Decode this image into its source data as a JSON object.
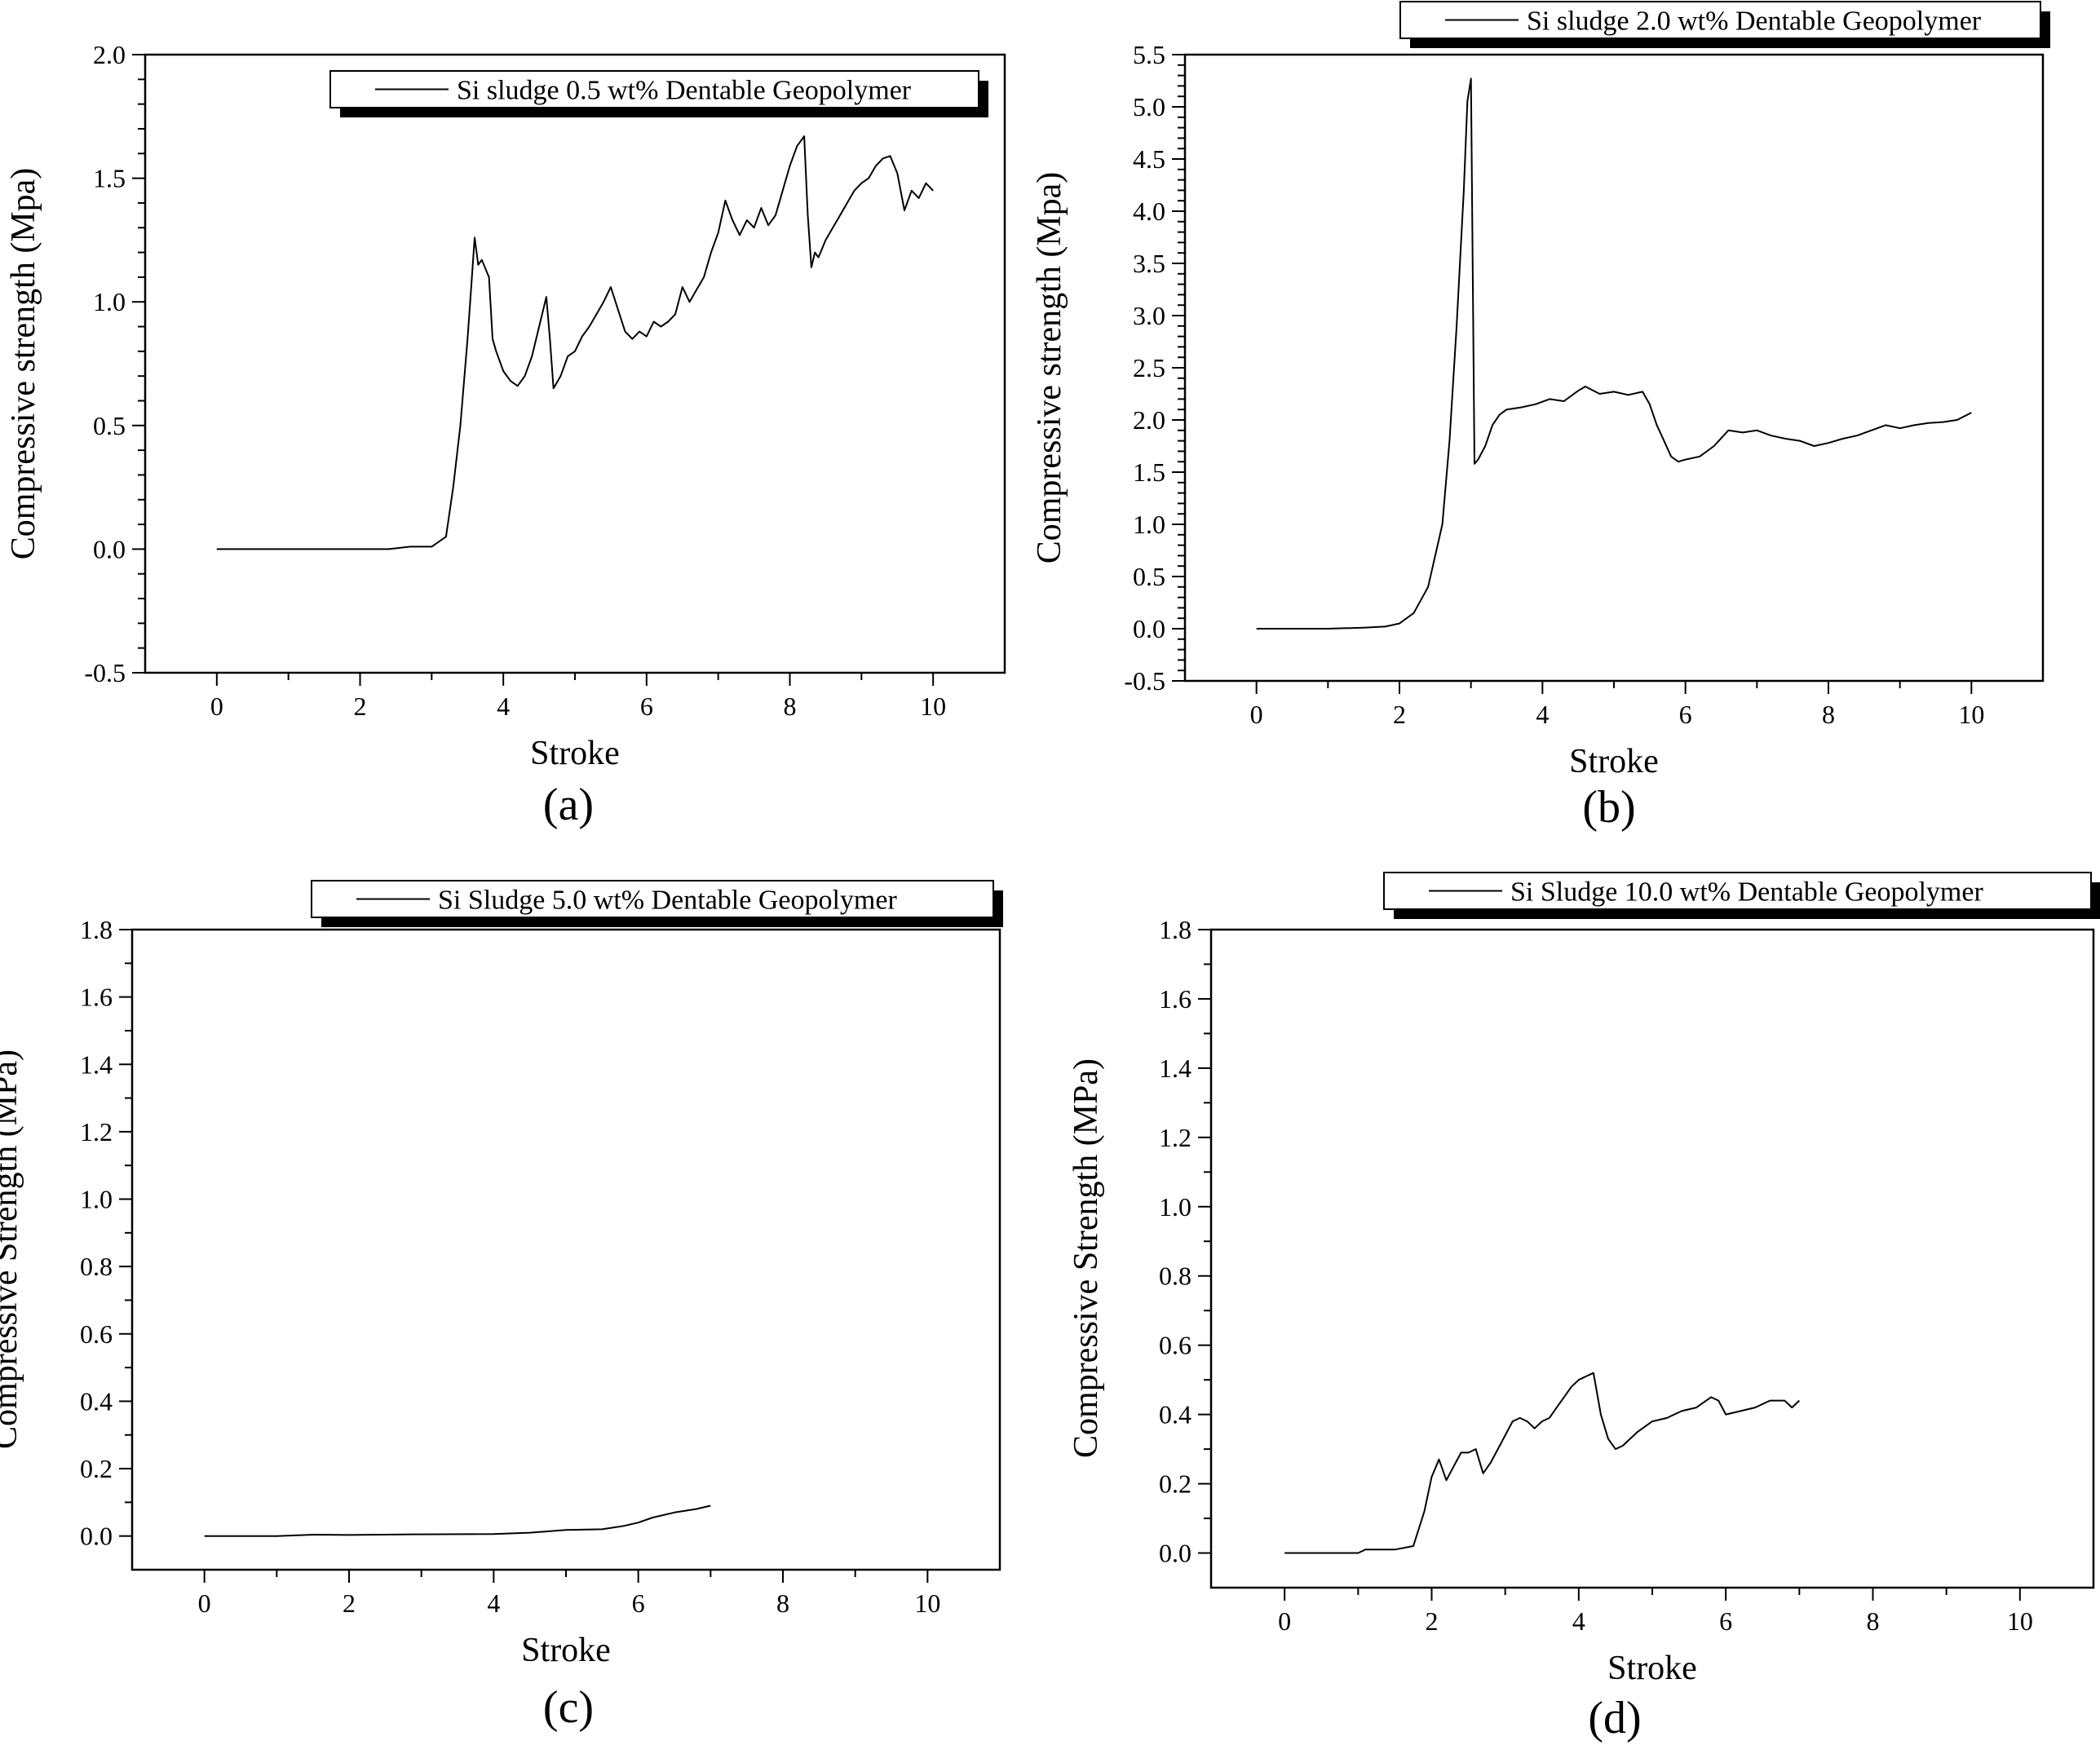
{
  "figure": {
    "panel_count": 4
  },
  "chart_data": [
    {
      "type": "line",
      "panel": "(a)",
      "xlabel": "Stroke",
      "ylabel": "Compressive strength (Mpa)",
      "xlim": [
        -1,
        11
      ],
      "ylim": [
        -0.5,
        2.0
      ],
      "xticks": [
        "0",
        "2",
        "4",
        "6",
        "8",
        "10"
      ],
      "yticks": [
        "-0.5",
        "0.0",
        "0.5",
        "1.0",
        "1.5",
        "2.0"
      ],
      "grid": false,
      "legend_position": "top-right",
      "series": [
        {
          "name": "Si sludge 0.5 wt% Dentable Geopolymer",
          "x": [
            0,
            0.5,
            1,
            1.5,
            2,
            2.4,
            2.7,
            3.0,
            3.2,
            3.3,
            3.4,
            3.5,
            3.55,
            3.6,
            3.65,
            3.7,
            3.8,
            3.85,
            3.9,
            4.0,
            4.1,
            4.2,
            4.3,
            4.4,
            4.5,
            4.6,
            4.65,
            4.7,
            4.8,
            4.9,
            5.0,
            5.1,
            5.2,
            5.3,
            5.4,
            5.5,
            5.6,
            5.7,
            5.8,
            5.9,
            6.0,
            6.1,
            6.2,
            6.3,
            6.4,
            6.5,
            6.6,
            6.7,
            6.8,
            6.9,
            7.0,
            7.1,
            7.2,
            7.3,
            7.4,
            7.5,
            7.6,
            7.7,
            7.8,
            7.9,
            8.0,
            8.1,
            8.2,
            8.25,
            8.3,
            8.35,
            8.4,
            8.5,
            8.6,
            8.7,
            8.8,
            8.9,
            9.0,
            9.1,
            9.2,
            9.3,
            9.4,
            9.5,
            9.6,
            9.7,
            9.8,
            9.9,
            10.0
          ],
          "y": [
            0,
            0,
            0,
            0,
            0,
            0,
            0.01,
            0.01,
            0.05,
            0.25,
            0.5,
            0.85,
            1.05,
            1.26,
            1.15,
            1.17,
            1.1,
            0.85,
            0.8,
            0.72,
            0.68,
            0.66,
            0.7,
            0.78,
            0.9,
            1.02,
            0.85,
            0.65,
            0.7,
            0.78,
            0.8,
            0.86,
            0.9,
            0.95,
            1.0,
            1.06,
            0.97,
            0.88,
            0.85,
            0.88,
            0.86,
            0.92,
            0.9,
            0.92,
            0.95,
            1.06,
            1.0,
            1.05,
            1.1,
            1.2,
            1.28,
            1.41,
            1.33,
            1.27,
            1.33,
            1.3,
            1.38,
            1.31,
            1.35,
            1.45,
            1.55,
            1.63,
            1.67,
            1.35,
            1.14,
            1.2,
            1.18,
            1.25,
            1.3,
            1.35,
            1.4,
            1.45,
            1.48,
            1.5,
            1.55,
            1.58,
            1.59,
            1.52,
            1.37,
            1.45,
            1.42,
            1.48,
            1.45
          ]
        }
      ]
    },
    {
      "type": "line",
      "panel": "(b)",
      "xlabel": "Stroke",
      "ylabel": "Compressive strength (Mpa)",
      "xlim": [
        -1,
        11
      ],
      "ylim": [
        -0.5,
        5.5
      ],
      "xticks": [
        "0",
        "2",
        "4",
        "6",
        "8",
        "10"
      ],
      "yticks": [
        "-0.5",
        "0.0",
        "0.5",
        "1.0",
        "1.5",
        "2.0",
        "2.5",
        "3.0",
        "3.5",
        "4.0",
        "4.5",
        "5.0",
        "5.5"
      ],
      "grid": false,
      "legend_position": "top-right",
      "series": [
        {
          "name": "Si sludge 2.0 wt% Dentable Geopolymer",
          "x": [
            0,
            0.5,
            1.0,
            1.5,
            1.8,
            2.0,
            2.2,
            2.4,
            2.6,
            2.7,
            2.8,
            2.9,
            2.95,
            3.0,
            3.05,
            3.1,
            3.2,
            3.3,
            3.4,
            3.5,
            3.7,
            3.9,
            4.1,
            4.3,
            4.5,
            4.6,
            4.8,
            5.0,
            5.2,
            5.4,
            5.5,
            5.6,
            5.7,
            5.8,
            5.9,
            6.0,
            6.2,
            6.4,
            6.6,
            6.8,
            7.0,
            7.2,
            7.4,
            7.6,
            7.8,
            8.0,
            8.2,
            8.4,
            8.6,
            8.8,
            9.0,
            9.2,
            9.4,
            9.6,
            9.8,
            10.0
          ],
          "y": [
            0,
            0,
            0,
            0.01,
            0.02,
            0.05,
            0.15,
            0.4,
            1.0,
            1.8,
            2.9,
            4.2,
            5.05,
            5.27,
            1.58,
            1.62,
            1.75,
            1.95,
            2.05,
            2.1,
            2.12,
            2.15,
            2.2,
            2.18,
            2.28,
            2.32,
            2.25,
            2.27,
            2.24,
            2.27,
            2.15,
            1.95,
            1.8,
            1.65,
            1.6,
            1.62,
            1.65,
            1.75,
            1.9,
            1.88,
            1.9,
            1.85,
            1.82,
            1.8,
            1.75,
            1.78,
            1.82,
            1.85,
            1.9,
            1.95,
            1.92,
            1.95,
            1.97,
            1.98,
            2.0,
            2.07
          ]
        }
      ]
    },
    {
      "type": "line",
      "panel": "(c)",
      "xlabel": "Stroke",
      "ylabel": "Compressive Strength (MPa)",
      "xlim": [
        -1,
        11
      ],
      "ylim": [
        -0.1,
        1.8
      ],
      "xticks": [
        "0",
        "2",
        "4",
        "6",
        "8",
        "10"
      ],
      "yticks": [
        "0.0",
        "0.2",
        "0.4",
        "0.6",
        "0.8",
        "1.0",
        "1.2",
        "1.4",
        "1.6",
        "1.8"
      ],
      "grid": false,
      "legend_position": "top-right",
      "series": [
        {
          "name": "Si Sludge 5.0 wt% Dentable Geopolymer",
          "x": [
            0,
            1,
            1.5,
            2,
            3,
            4,
            4.5,
            5.0,
            5.5,
            5.8,
            6.0,
            6.2,
            6.5,
            6.8,
            7.0
          ],
          "y": [
            0,
            0,
            0.004,
            0.003,
            0.005,
            0.006,
            0.01,
            0.018,
            0.02,
            0.03,
            0.04,
            0.055,
            0.07,
            0.08,
            0.09
          ]
        }
      ]
    },
    {
      "type": "line",
      "panel": "(d)",
      "xlabel": "Stroke",
      "ylabel": "Compressive Strength (MPa)",
      "xlim": [
        -1,
        11
      ],
      "ylim": [
        -0.1,
        1.8
      ],
      "xticks": [
        "0",
        "2",
        "4",
        "6",
        "8",
        "10"
      ],
      "yticks": [
        "0.0",
        "0.2",
        "0.4",
        "0.6",
        "0.8",
        "1.0",
        "1.2",
        "1.4",
        "1.6",
        "1.8"
      ],
      "grid": false,
      "legend_position": "top-right",
      "series": [
        {
          "name": "Si Sludge 10.0 wt% Dentable Geopolymer",
          "x": [
            0,
            0.5,
            1.0,
            1.1,
            1.5,
            1.75,
            1.9,
            2.0,
            2.1,
            2.2,
            2.3,
            2.4,
            2.5,
            2.6,
            2.7,
            2.8,
            2.9,
            3.0,
            3.1,
            3.2,
            3.3,
            3.4,
            3.5,
            3.6,
            3.7,
            3.8,
            3.9,
            4.0,
            4.1,
            4.2,
            4.3,
            4.4,
            4.5,
            4.6,
            4.8,
            5.0,
            5.2,
            5.4,
            5.6,
            5.8,
            5.9,
            6.0,
            6.2,
            6.4,
            6.6,
            6.8,
            6.9,
            7.0
          ],
          "y": [
            0,
            0,
            0,
            0.01,
            0.01,
            0.02,
            0.12,
            0.22,
            0.27,
            0.21,
            0.25,
            0.29,
            0.29,
            0.3,
            0.23,
            0.26,
            0.3,
            0.34,
            0.38,
            0.39,
            0.38,
            0.36,
            0.38,
            0.39,
            0.42,
            0.45,
            0.48,
            0.5,
            0.51,
            0.52,
            0.4,
            0.33,
            0.3,
            0.31,
            0.35,
            0.38,
            0.39,
            0.41,
            0.42,
            0.45,
            0.44,
            0.4,
            0.41,
            0.42,
            0.44,
            0.44,
            0.42,
            0.44
          ]
        }
      ]
    }
  ]
}
